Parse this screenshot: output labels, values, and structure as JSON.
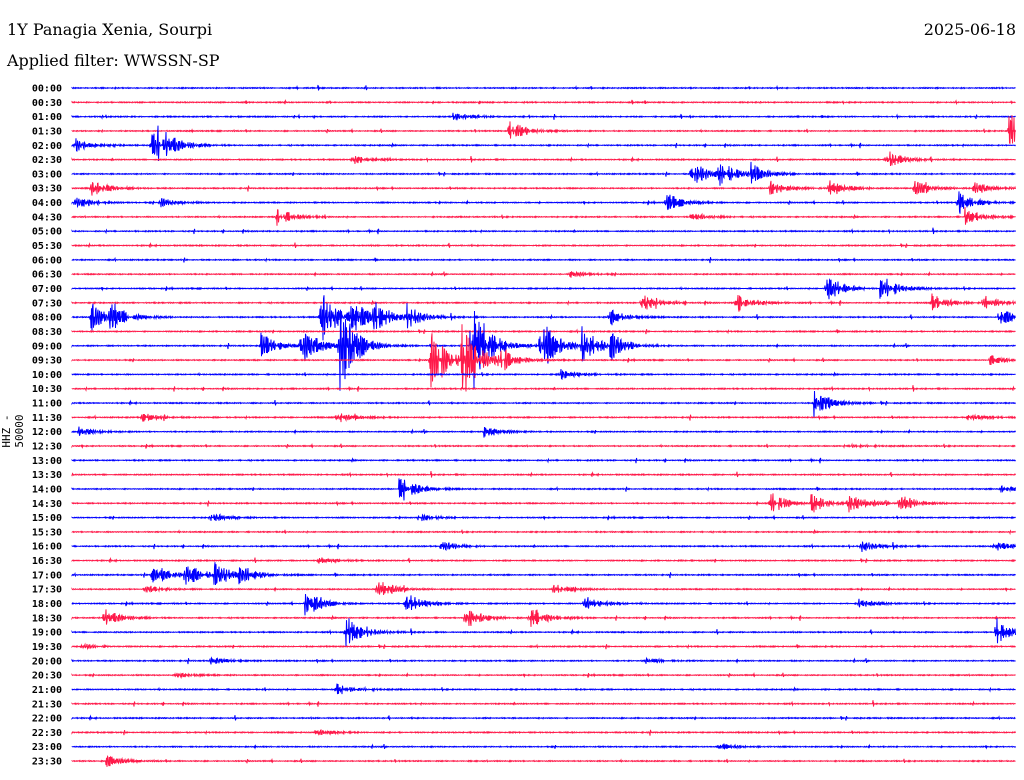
{
  "header": {
    "station": "1Y Panagia Xenia, Sourpi",
    "date": "2025-06-18",
    "filter": "Applied filter: WWSSN-SP"
  },
  "chart_data": {
    "type": "line",
    "title": "1Y Panagia Xenia, Sourpi",
    "ylabel": "HHZ - 50000",
    "minutes_per_row": 30,
    "colors": [
      "#0000ff",
      "#ff1a4a"
    ],
    "rows": [
      {
        "label": "00:00",
        "events": []
      },
      {
        "label": "00:30",
        "events": []
      },
      {
        "label": "01:00",
        "events": [
          [
            12.1,
            5
          ]
        ]
      },
      {
        "label": "01:30",
        "events": [
          [
            13.9,
            12
          ],
          [
            29.8,
            22
          ]
        ]
      },
      {
        "label": "02:00",
        "events": [
          [
            0.1,
            8
          ],
          [
            2.5,
            15
          ],
          [
            2.7,
            15
          ]
        ]
      },
      {
        "label": "02:30",
        "events": [
          [
            8.9,
            5
          ],
          [
            25.9,
            10
          ]
        ]
      },
      {
        "label": "03:00",
        "events": [
          [
            19.7,
            15
          ],
          [
            20.6,
            12
          ],
          [
            21.6,
            10
          ]
        ]
      },
      {
        "label": "03:30",
        "events": [
          [
            0.6,
            10
          ],
          [
            22.2,
            8
          ],
          [
            24.1,
            10
          ],
          [
            26.8,
            8
          ],
          [
            28.7,
            8
          ]
        ]
      },
      {
        "label": "04:00",
        "events": [
          [
            0.1,
            8
          ],
          [
            2.8,
            5
          ],
          [
            18.9,
            10
          ],
          [
            28.2,
            12
          ]
        ]
      },
      {
        "label": "04:30",
        "events": [
          [
            6.5,
            10
          ],
          [
            19.7,
            5
          ],
          [
            28.4,
            10
          ]
        ]
      },
      {
        "label": "05:00",
        "events": []
      },
      {
        "label": "05:30",
        "events": []
      },
      {
        "label": "06:00",
        "events": []
      },
      {
        "label": "06:30",
        "events": [
          [
            15.8,
            4
          ]
        ]
      },
      {
        "label": "07:00",
        "events": [
          [
            24.0,
            15
          ],
          [
            25.7,
            15
          ]
        ]
      },
      {
        "label": "07:30",
        "events": [
          [
            18.1,
            10
          ],
          [
            21.1,
            12
          ],
          [
            27.3,
            10
          ],
          [
            29.0,
            8
          ]
        ]
      },
      {
        "label": "08:00",
        "events": [
          [
            0.6,
            15
          ],
          [
            1.2,
            15
          ],
          [
            7.9,
            30
          ],
          [
            8.8,
            20
          ],
          [
            9.6,
            15
          ],
          [
            10.6,
            12
          ],
          [
            17.1,
            8
          ],
          [
            29.5,
            10
          ]
        ]
      },
      {
        "label": "08:30",
        "events": []
      },
      {
        "label": "09:00",
        "events": [
          [
            6.0,
            15
          ],
          [
            7.3,
            20
          ],
          [
            8.5,
            50
          ],
          [
            12.7,
            60
          ],
          [
            14.9,
            30
          ],
          [
            16.2,
            20
          ],
          [
            17.1,
            15
          ]
        ]
      },
      {
        "label": "09:30",
        "events": [
          [
            11.4,
            40
          ],
          [
            12.4,
            40
          ],
          [
            13.6,
            15
          ],
          [
            29.2,
            5
          ]
        ]
      },
      {
        "label": "10:00",
        "events": [
          [
            15.5,
            6
          ]
        ]
      },
      {
        "label": "10:30",
        "events": []
      },
      {
        "label": "11:00",
        "events": [
          [
            23.6,
            15
          ]
        ]
      },
      {
        "label": "11:30",
        "events": [
          [
            2.2,
            5
          ],
          [
            8.4,
            6
          ],
          [
            28.5,
            4
          ]
        ]
      },
      {
        "label": "12:00",
        "events": [
          [
            0.2,
            5
          ],
          [
            13.1,
            8
          ]
        ]
      },
      {
        "label": "12:30",
        "events": [
          [
            24.6,
            3
          ]
        ]
      },
      {
        "label": "13:00",
        "events": []
      },
      {
        "label": "13:30",
        "events": []
      },
      {
        "label": "14:00",
        "events": [
          [
            10.4,
            15
          ],
          [
            29.5,
            4
          ]
        ]
      },
      {
        "label": "14:30",
        "events": [
          [
            22.2,
            12
          ],
          [
            23.5,
            10
          ],
          [
            24.7,
            10
          ],
          [
            26.3,
            10
          ]
        ]
      },
      {
        "label": "15:00",
        "events": [
          [
            4.4,
            5
          ],
          [
            11.0,
            4
          ]
        ]
      },
      {
        "label": "15:30",
        "events": []
      },
      {
        "label": "16:00",
        "events": [
          [
            11.7,
            6
          ],
          [
            25.1,
            6
          ],
          [
            29.4,
            5
          ]
        ]
      },
      {
        "label": "16:30",
        "events": [
          [
            7.8,
            4
          ]
        ]
      },
      {
        "label": "17:00",
        "events": [
          [
            2.5,
            15
          ],
          [
            3.6,
            12
          ],
          [
            4.5,
            12
          ],
          [
            5.3,
            10
          ]
        ]
      },
      {
        "label": "17:30",
        "events": [
          [
            2.3,
            5
          ],
          [
            9.7,
            10
          ],
          [
            15.3,
            6
          ]
        ]
      },
      {
        "label": "18:00",
        "events": [
          [
            7.4,
            15
          ],
          [
            10.6,
            12
          ],
          [
            16.3,
            8
          ],
          [
            25.0,
            5
          ]
        ]
      },
      {
        "label": "18:30",
        "events": [
          [
            0.9,
            12
          ],
          [
            12.5,
            12
          ],
          [
            14.6,
            12
          ]
        ]
      },
      {
        "label": "19:00",
        "events": [
          [
            8.7,
            18
          ],
          [
            29.4,
            15
          ]
        ]
      },
      {
        "label": "19:30",
        "events": [
          [
            0.3,
            3
          ]
        ]
      },
      {
        "label": "20:00",
        "events": [
          [
            4.4,
            4
          ],
          [
            18.2,
            3
          ]
        ]
      },
      {
        "label": "20:30",
        "events": [
          [
            3.3,
            3
          ]
        ]
      },
      {
        "label": "21:00",
        "events": [
          [
            8.4,
            8
          ]
        ]
      },
      {
        "label": "21:30",
        "events": []
      },
      {
        "label": "22:00",
        "events": []
      },
      {
        "label": "22:30",
        "events": [
          [
            7.8,
            3
          ]
        ]
      },
      {
        "label": "23:00",
        "events": [
          [
            20.6,
            4
          ]
        ]
      },
      {
        "label": "23:30",
        "events": [
          [
            1.1,
            6
          ]
        ]
      }
    ]
  }
}
